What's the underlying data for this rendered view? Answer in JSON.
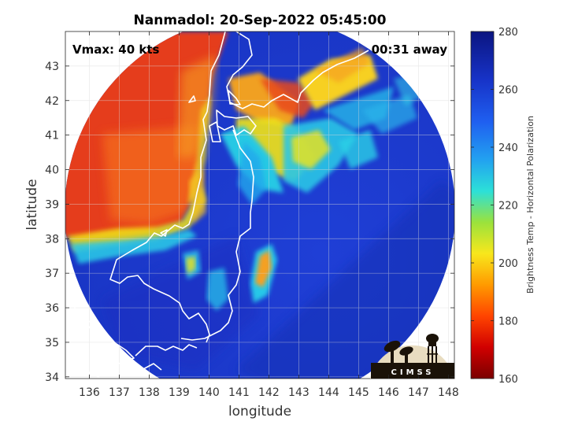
{
  "title": "Nanmadol: 20-Sep-2022 05:45:00",
  "vmax_label": "Vmax: 40 kts",
  "away_label": "00:31 away",
  "xlabel": "longitude",
  "ylabel": "latitude",
  "colorbar_label": "Brightness Temp - Horizontal Polarization",
  "logo_text": "CIMSS",
  "colors": {
    "ocean_blue": "#1e3fd8",
    "deep_blue": "#0a1aa0",
    "cyan": "#25c8e8",
    "yellow": "#f2e418",
    "orange": "#f7901e",
    "red": "#e8401c",
    "coast": "#ffffff"
  },
  "chart_data": {
    "type": "heatmap",
    "x_ticks": [
      "136",
      "137",
      "138",
      "139",
      "140",
      "141",
      "142",
      "143",
      "144",
      "145",
      "146",
      "147",
      "148"
    ],
    "y_ticks": [
      "34",
      "35",
      "36",
      "37",
      "38",
      "39",
      "40",
      "41",
      "42",
      "43"
    ],
    "xlim": [
      135.2,
      148.2
    ],
    "ylim": [
      33.95,
      44.0
    ],
    "grid": true,
    "colorbar": {
      "range": [
        160,
        280
      ],
      "ticks": [
        "160",
        "180",
        "200",
        "220",
        "240",
        "260",
        "280"
      ],
      "colormap": [
        "#7a0000",
        "#d10000",
        "#ff4400",
        "#ff9a00",
        "#f8e71c",
        "#9be23c",
        "#2ce0d8",
        "#22a2f0",
        "#1f5ff0",
        "#1733c8",
        "#0b1580"
      ]
    }
  }
}
